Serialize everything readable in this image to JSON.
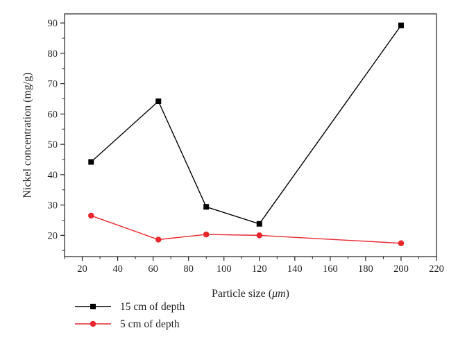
{
  "chart_data": {
    "type": "line",
    "xlabel_prefix": "Particle size (",
    "xlabel_unit": "μm",
    "xlabel_suffix": ")",
    "ylabel": "Nickel concentration (mg/g)",
    "xlim": [
      10,
      220
    ],
    "ylim": [
      13,
      93
    ],
    "x_ticks": [
      20,
      40,
      60,
      80,
      100,
      120,
      140,
      160,
      180,
      200,
      220
    ],
    "y_ticks": [
      20,
      30,
      40,
      50,
      60,
      70,
      80,
      90
    ],
    "grid": false,
    "legend_position": "bottom-left",
    "series": [
      {
        "name": "15 cm of depth",
        "marker": "square",
        "color": "#000000",
        "x": [
          25,
          63,
          90,
          120,
          200
        ],
        "y": [
          44.2,
          64.2,
          29.4,
          23.8,
          89.2
        ]
      },
      {
        "name": "5 cm of depth",
        "marker": "circle",
        "color": "#e8262c",
        "x": [
          25,
          63,
          90,
          120,
          200
        ],
        "y": [
          26.5,
          18.6,
          20.3,
          20.0,
          17.4
        ]
      }
    ]
  }
}
